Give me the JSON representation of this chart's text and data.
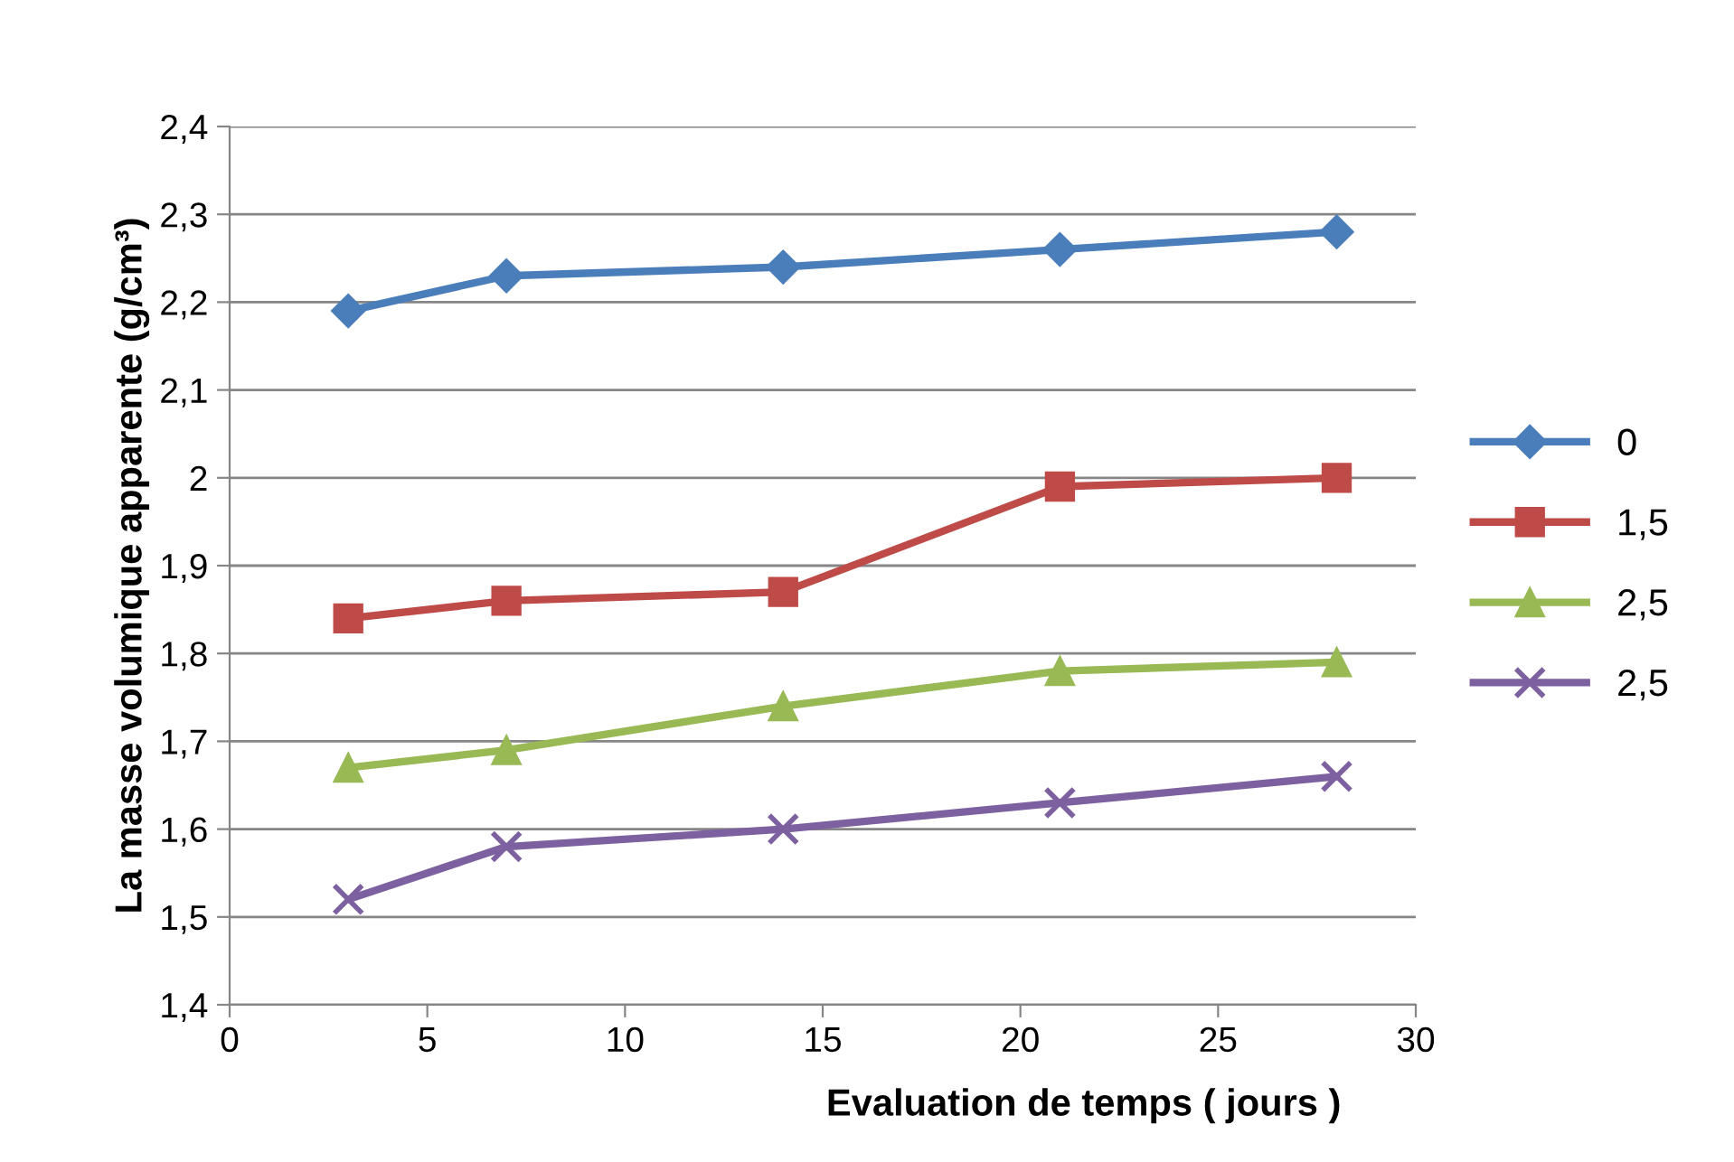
{
  "chart_data": {
    "type": "line",
    "xlabel": "Evaluation de temps ( jours )",
    "ylabel": "La masse volumique apparente (g/cm³)",
    "x": [
      3,
      7,
      14,
      21,
      28
    ],
    "series": [
      {
        "name": "0",
        "color": "#4a7ebb",
        "marker": "diamond",
        "values": [
          2.19,
          2.23,
          2.24,
          2.26,
          2.28
        ]
      },
      {
        "name": "1,5",
        "color": "#be4b48",
        "marker": "square",
        "values": [
          1.84,
          1.86,
          1.87,
          1.99,
          2.0
        ]
      },
      {
        "name": "2,5",
        "color": "#98b954",
        "marker": "triangle",
        "values": [
          1.67,
          1.69,
          1.74,
          1.78,
          1.79
        ]
      },
      {
        "name": "2,5",
        "color": "#7d60a0",
        "marker": "cross",
        "values": [
          1.52,
          1.58,
          1.6,
          1.63,
          1.66
        ]
      }
    ],
    "xlim": [
      0,
      30
    ],
    "xticks": [
      0,
      5,
      10,
      15,
      20,
      25,
      30
    ],
    "ylim": [
      1.4,
      2.4
    ],
    "yticks": [
      {
        "value": 1.4,
        "label": "1,4"
      },
      {
        "value": 1.5,
        "label": "1,5"
      },
      {
        "value": 1.6,
        "label": "1,6"
      },
      {
        "value": 1.7,
        "label": "1,7"
      },
      {
        "value": 1.8,
        "label": "1,8"
      },
      {
        "value": 1.9,
        "label": "1,9"
      },
      {
        "value": 2,
        "label": "2"
      },
      {
        "value": 2.1,
        "label": "2,1"
      },
      {
        "value": 2.2,
        "label": "2,2"
      },
      {
        "value": 2.3,
        "label": "2,3"
      },
      {
        "value": 2.4,
        "label": "2,4"
      }
    ],
    "grid": "y",
    "legend": "right",
    "line_style": "solid"
  }
}
